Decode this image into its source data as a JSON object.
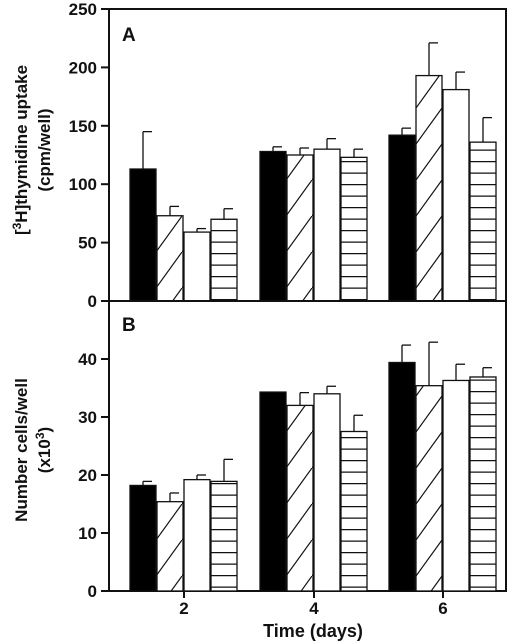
{
  "chart_data": [
    {
      "type": "bar",
      "panel_label": "A",
      "ylabel_line1": "[",
      "ylabel_sup": "3",
      "ylabel_line1_rest": "H]thymidine uptake",
      "ylabel_line2": "(cpm/well)",
      "categories": [
        "2",
        "4",
        "6"
      ],
      "ylim": [
        0,
        250
      ],
      "yticks": [
        "0",
        "50",
        "100",
        "150",
        "200",
        "250"
      ],
      "series": [
        {
          "pattern": "solid",
          "values": [
            113,
            128,
            142
          ],
          "errors": [
            32,
            4,
            6
          ]
        },
        {
          "pattern": "diagonal",
          "values": [
            73,
            125,
            193
          ],
          "errors": [
            8,
            6,
            28
          ]
        },
        {
          "pattern": "open",
          "values": [
            59,
            130,
            181
          ],
          "errors": [
            3,
            9,
            15
          ]
        },
        {
          "pattern": "horizontal",
          "values": [
            70,
            123,
            136
          ],
          "errors": [
            9,
            7,
            21
          ]
        }
      ]
    },
    {
      "type": "bar",
      "panel_label": "B",
      "ylabel_line1": "Number cells/well",
      "ylabel_line2_pre": "(x10",
      "ylabel_line2_sup": "3",
      "ylabel_line2_post": ")",
      "categories": [
        "2",
        "4",
        "6"
      ],
      "ylim": [
        0,
        50
      ],
      "yticks": [
        "0",
        "10",
        "20",
        "30",
        "40"
      ],
      "series": [
        {
          "pattern": "solid",
          "values": [
            18.2,
            34.3,
            39.4
          ],
          "errors": [
            0.7,
            0,
            3
          ]
        },
        {
          "pattern": "diagonal",
          "values": [
            15.4,
            32,
            35.4
          ],
          "errors": [
            1.5,
            2.2,
            7.5
          ]
        },
        {
          "pattern": "open",
          "values": [
            19.2,
            34,
            36.3
          ],
          "errors": [
            0.8,
            1.3,
            2.8
          ]
        },
        {
          "pattern": "horizontal",
          "values": [
            18.9,
            27.5,
            36.9
          ],
          "errors": [
            3.8,
            2.8,
            1.6
          ]
        }
      ]
    }
  ],
  "xlabel": "Time (days)"
}
